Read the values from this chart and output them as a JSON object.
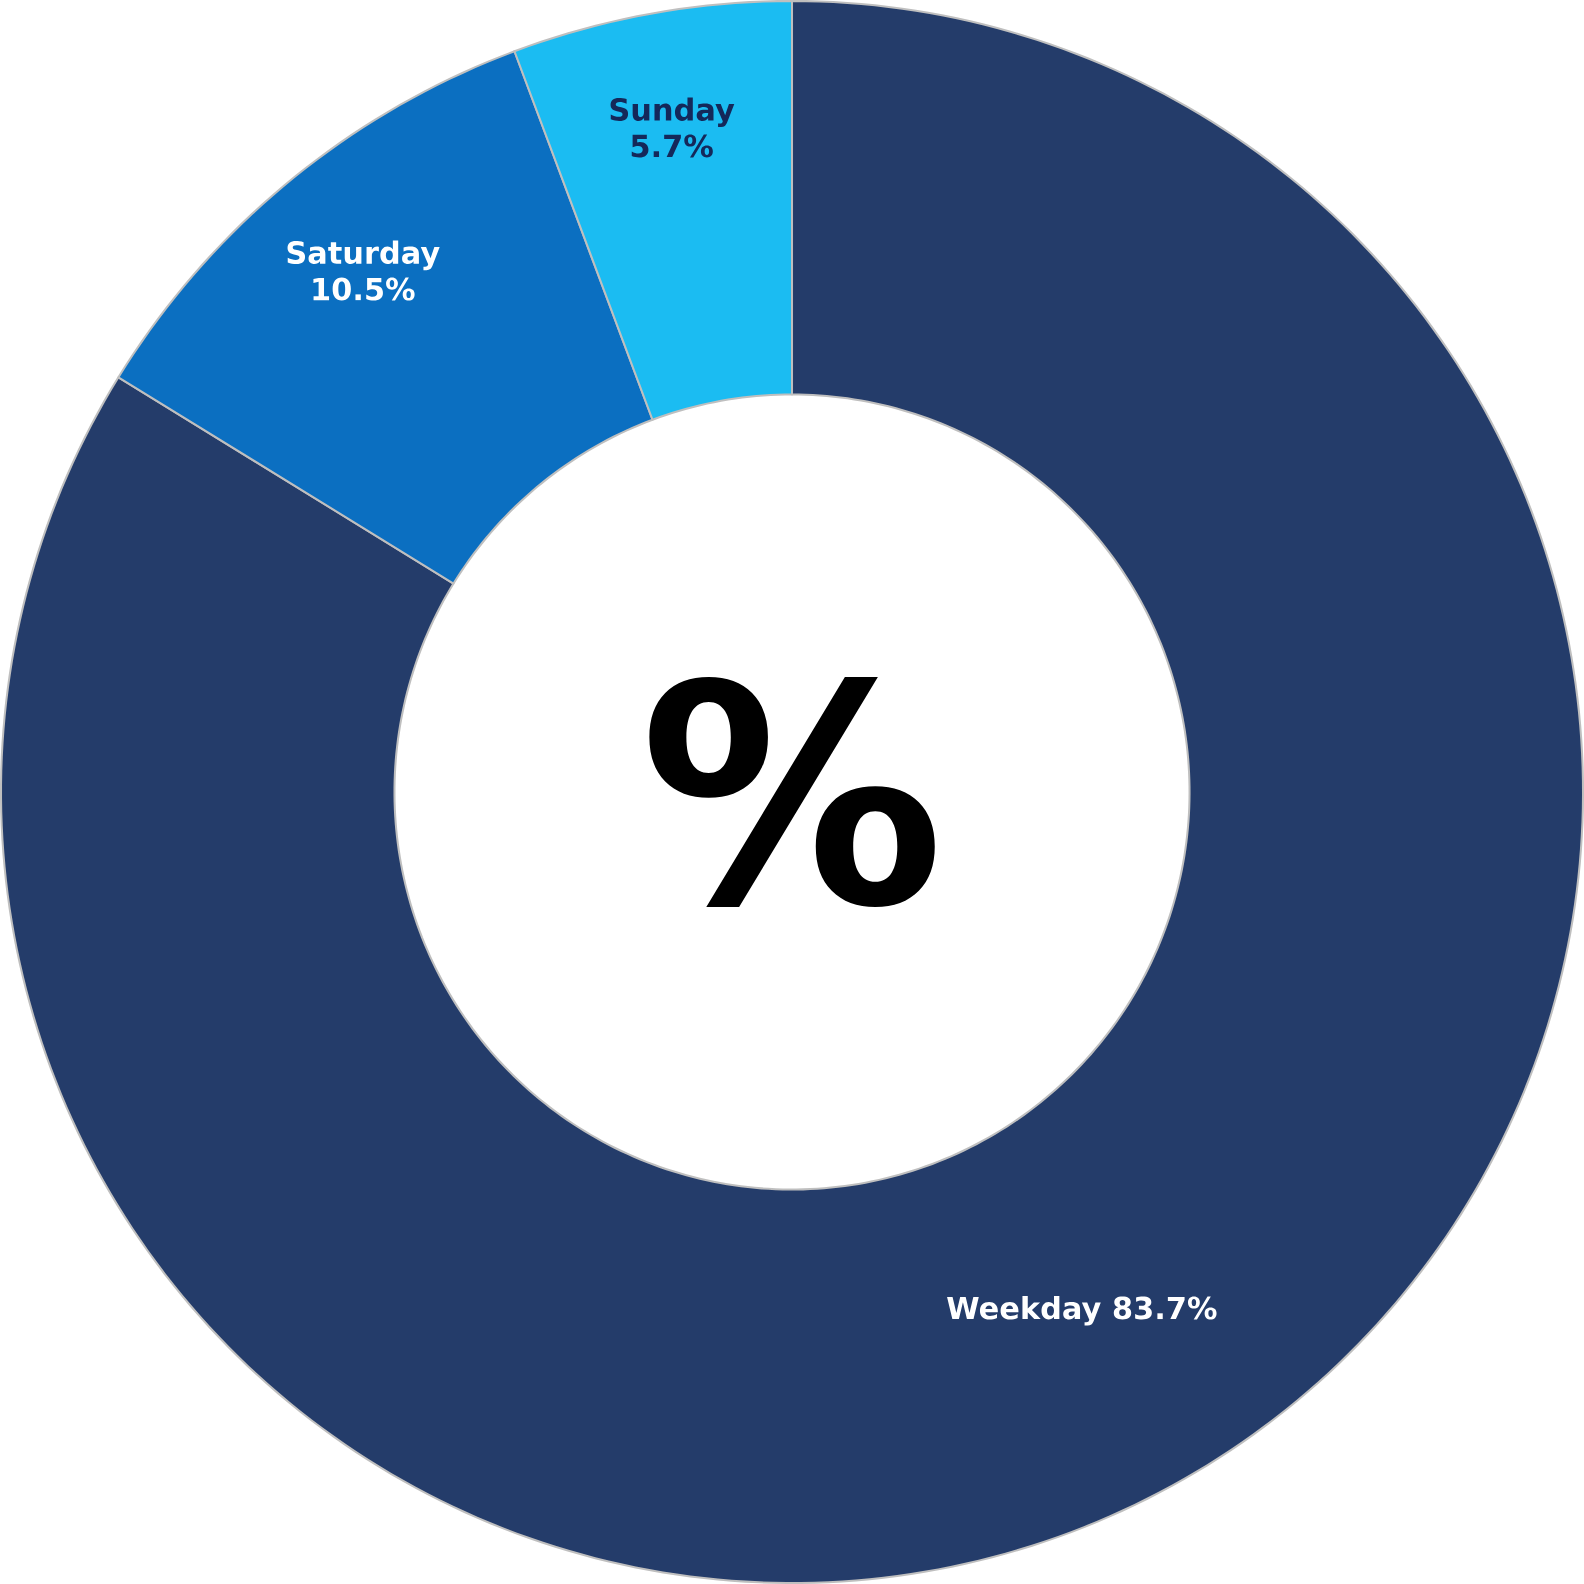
{
  "chart_data": {
    "type": "donut",
    "categories": [
      "Weekday",
      "Saturday",
      "Sunday"
    ],
    "values": [
      83.7,
      10.5,
      5.7
    ],
    "value_labels": [
      "83.7%",
      "10.5%",
      "5.7%"
    ],
    "colors": [
      "#243c6a",
      "#0b6fc1",
      "#1bbcf2"
    ],
    "annotations": [
      "%"
    ]
  }
}
